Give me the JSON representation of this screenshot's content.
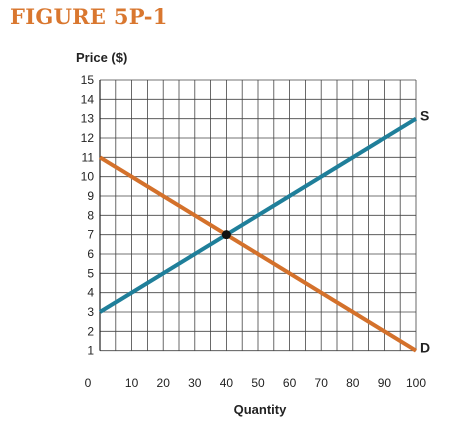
{
  "figure_title": "FIGURE 5P-1",
  "chart_data": {
    "type": "line",
    "ylabel": "Price ($)",
    "xlabel": "Quantity",
    "xlim": [
      0,
      100
    ],
    "ylim": [
      0,
      15
    ],
    "x_ticks": [
      0,
      10,
      20,
      30,
      40,
      50,
      60,
      70,
      80,
      90,
      100
    ],
    "y_ticks": [
      1,
      2,
      3,
      4,
      5,
      6,
      7,
      8,
      9,
      10,
      11,
      12,
      13,
      14,
      15
    ],
    "grid": true,
    "series": [
      {
        "name": "S",
        "x": [
          0,
          100
        ],
        "y": [
          3,
          13
        ],
        "color": "#1f7f9a"
      },
      {
        "name": "D",
        "x": [
          0,
          100
        ],
        "y": [
          11,
          1
        ],
        "color": "#d4712b"
      }
    ],
    "equilibrium_point": {
      "x": 40,
      "y": 7,
      "color": "#111111"
    }
  }
}
